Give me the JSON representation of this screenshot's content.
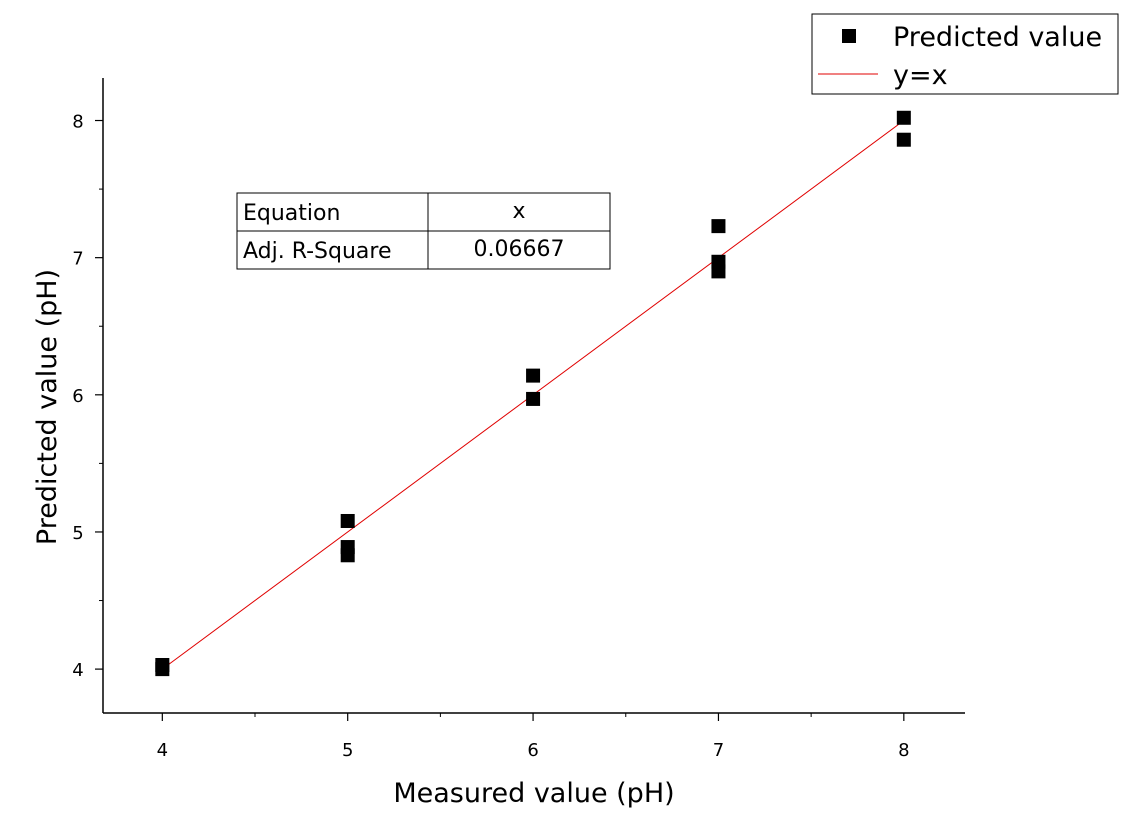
{
  "chart_data": {
    "type": "scatter",
    "title": "",
    "xlabel": "Measured value (pH)",
    "ylabel": "Predicted value (pH)",
    "xlim": [
      3.68,
      8.33
    ],
    "ylim": [
      3.68,
      8.31
    ],
    "xticks": [
      4,
      5,
      6,
      7,
      8
    ],
    "yticks": [
      4,
      5,
      6,
      7,
      8
    ],
    "grid": false,
    "legend_position": "top-right",
    "series": [
      {
        "name": "Predicted value",
        "marker": "square",
        "color": "#000000",
        "points": [
          {
            "x": 4,
            "y": 4.03
          },
          {
            "x": 4,
            "y": 4.0
          },
          {
            "x": 5,
            "y": 5.08
          },
          {
            "x": 5,
            "y": 4.89
          },
          {
            "x": 5,
            "y": 4.83
          },
          {
            "x": 6,
            "y": 6.14
          },
          {
            "x": 6,
            "y": 5.97
          },
          {
            "x": 7,
            "y": 7.23
          },
          {
            "x": 7,
            "y": 6.97
          },
          {
            "x": 7,
            "y": 6.9
          },
          {
            "x": 8,
            "y": 8.02
          },
          {
            "x": 8,
            "y": 7.86
          }
        ]
      },
      {
        "name": "y=x",
        "type": "line",
        "color": "#e00000",
        "points": [
          {
            "x": 4,
            "y": 4
          },
          {
            "x": 8,
            "y": 8
          }
        ]
      }
    ],
    "fit_table": {
      "rows": [
        {
          "label": "Equation",
          "value": "x"
        },
        {
          "label": "Adj. R-Square",
          "value": "0.06667"
        }
      ]
    }
  }
}
